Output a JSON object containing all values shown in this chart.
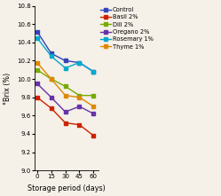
{
  "x": [
    0,
    15,
    30,
    45,
    60
  ],
  "series": {
    "Control": [
      10.52,
      10.28,
      10.2,
      10.18,
      10.08
    ],
    "Basil 2%": [
      9.8,
      9.68,
      9.52,
      9.5,
      9.38
    ],
    "Dill 2%": [
      10.1,
      10.0,
      9.92,
      9.82,
      9.82
    ],
    "Oregano 2%": [
      9.95,
      9.8,
      9.64,
      9.7,
      9.62
    ],
    "Rosemary 1%": [
      10.45,
      10.25,
      10.12,
      10.18,
      10.08
    ],
    "Thyme 1%": [
      10.18,
      10.0,
      9.82,
      9.8,
      9.7
    ]
  },
  "colors": {
    "Control": "#3344bb",
    "Basil 2%": "#cc2200",
    "Dill 2%": "#77aa00",
    "Oregano 2%": "#6633aa",
    "Rosemary 1%": "#00aacc",
    "Thyme 1%": "#dd8800"
  },
  "xlabel": "Storage period (days)",
  "ylabel": "°Brix (%)",
  "ylim": [
    9.0,
    10.8
  ],
  "yticks": [
    9.0,
    9.2,
    9.4,
    9.6,
    9.8,
    10.0,
    10.2,
    10.4,
    10.6,
    10.8
  ],
  "xticks": [
    0,
    15,
    30,
    45,
    60
  ],
  "legend_fontsize": 4.8,
  "axis_fontsize": 5.8,
  "tick_fontsize": 5.0,
  "linewidth": 1.0,
  "markersize": 3.0,
  "bg_color": "#f5f0e8"
}
